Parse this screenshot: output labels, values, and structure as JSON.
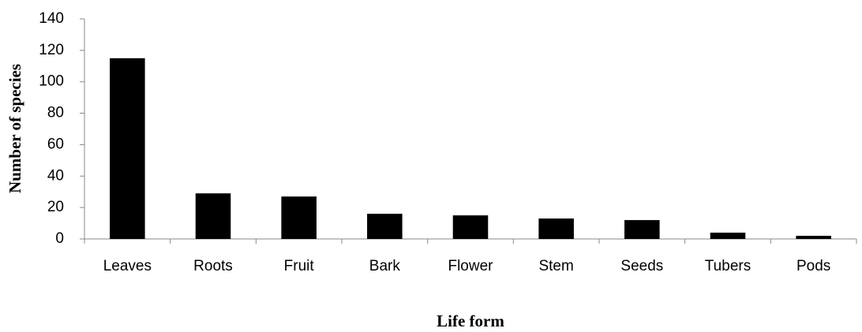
{
  "chart_data": {
    "type": "bar",
    "categories": [
      "Leaves",
      "Roots",
      "Fruit",
      "Bark",
      "Flower",
      "Stem",
      "Seeds",
      "Tubers",
      "Pods"
    ],
    "values": [
      115,
      29,
      27,
      16,
      15,
      13,
      12,
      4,
      2
    ],
    "color": "#000000",
    "x_label": "Life form",
    "y_label": "Number of species",
    "ylim": [
      0,
      140
    ],
    "yticks": [
      0,
      20,
      40,
      60,
      80,
      100,
      120,
      140
    ],
    "grid": false
  }
}
